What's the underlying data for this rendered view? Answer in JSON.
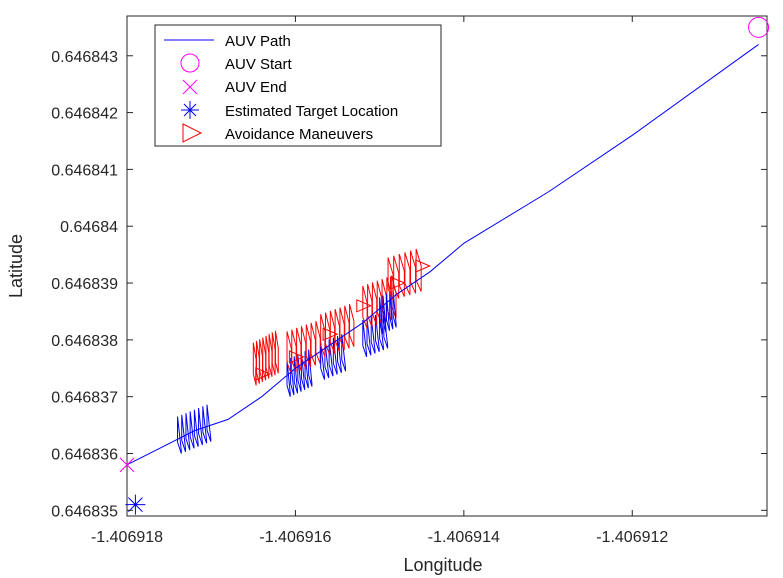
{
  "chart_data": {
    "type": "line",
    "title": "",
    "xlabel": "Longitude",
    "ylabel": "Latitude",
    "xlim": [
      -1.406918,
      -1.4069104
    ],
    "ylim": [
      0.6468349,
      0.6468437
    ],
    "xticks": [
      -1.406918,
      -1.406916,
      -1.406914,
      -1.406912
    ],
    "xtick_labels": [
      "-1.406918",
      "-1.406916",
      "-1.406914",
      "-1.406912"
    ],
    "yticks": [
      0.646835,
      0.646836,
      0.646837,
      0.646838,
      0.646839,
      0.64684,
      0.646841,
      0.646842,
      0.646843
    ],
    "ytick_labels": [
      "0.646835",
      "0.646836",
      "0.646837",
      "0.646838",
      "0.646839",
      "0.64684",
      "0.646841",
      "0.646842",
      "0.646843"
    ],
    "grid": false,
    "legend_position": "top-left",
    "colors": {
      "path": "#0000ff",
      "start": "#ff00ff",
      "end": "#ff00ff",
      "target": "#0000ff",
      "avoid": "#ff0000"
    },
    "series": [
      {
        "name": "AUV Path",
        "marker": "line",
        "x": [
          -1.406918,
          -1.4069176,
          -1.4069172,
          -1.4069168,
          -1.4069164,
          -1.406916,
          -1.4069156,
          -1.4069152,
          -1.4069148,
          -1.4069144,
          -1.406914,
          -1.406913,
          -1.406912,
          -1.4069105
        ],
        "y": [
          0.6468358,
          0.6468361,
          0.6468364,
          0.6468366,
          0.646837,
          0.6468375,
          0.6468379,
          0.6468383,
          0.6468388,
          0.6468392,
          0.6468397,
          0.6468406,
          0.6468416,
          0.6468432
        ]
      },
      {
        "name": "AUV Start",
        "marker": "circle",
        "x": [
          -1.4069105
        ],
        "y": [
          0.6468435
        ]
      },
      {
        "name": "AUV End",
        "marker": "x",
        "x": [
          -1.406918
        ],
        "y": [
          0.6468358
        ]
      },
      {
        "name": "Estimated Target Location",
        "marker": "asterisk",
        "x": [
          -1.4069179
        ],
        "y": [
          0.6468351
        ]
      },
      {
        "name": "Avoidance Maneuvers",
        "marker": "triangle-right",
        "x": [
          -1.4069164,
          -1.406916,
          -1.4069156,
          -1.4069152,
          -1.4069148,
          -1.4069145
        ],
        "y": [
          0.6468374,
          0.6468377,
          0.6468381,
          0.6468386,
          0.646839,
          0.6468393
        ]
      }
    ],
    "oscillation_segments": [
      {
        "color": "blue",
        "x_start": -1.4069174,
        "x_end": -1.406917,
        "y_base": 0.6468362,
        "count": 8
      },
      {
        "color": "red",
        "x_start": -1.4069165,
        "x_end": -1.4069162,
        "y_base": 0.6468374,
        "count": 8
      },
      {
        "color": "blue",
        "x_start": -1.4069161,
        "x_end": -1.4069158,
        "y_base": 0.6468372,
        "count": 7
      },
      {
        "color": "red",
        "x_start": -1.4069161,
        "x_end": -1.4069157,
        "y_base": 0.6468376,
        "count": 7
      },
      {
        "color": "blue",
        "x_start": -1.4069157,
        "x_end": -1.4069154,
        "y_base": 0.6468375,
        "count": 6
      },
      {
        "color": "red",
        "x_start": -1.4069157,
        "x_end": -1.4069153,
        "y_base": 0.6468379,
        "count": 7
      },
      {
        "color": "blue",
        "x_start": -1.4069152,
        "x_end": -1.4069149,
        "y_base": 0.6468379,
        "count": 6
      },
      {
        "color": "red",
        "x_start": -1.4069152,
        "x_end": -1.4069148,
        "y_base": 0.6468384,
        "count": 7
      },
      {
        "color": "blue",
        "x_start": -1.406915,
        "x_end": -1.4069148,
        "y_base": 0.6468383,
        "count": 5
      },
      {
        "color": "red",
        "x_start": -1.4069149,
        "x_end": -1.4069145,
        "y_base": 0.6468389,
        "count": 6
      }
    ]
  }
}
